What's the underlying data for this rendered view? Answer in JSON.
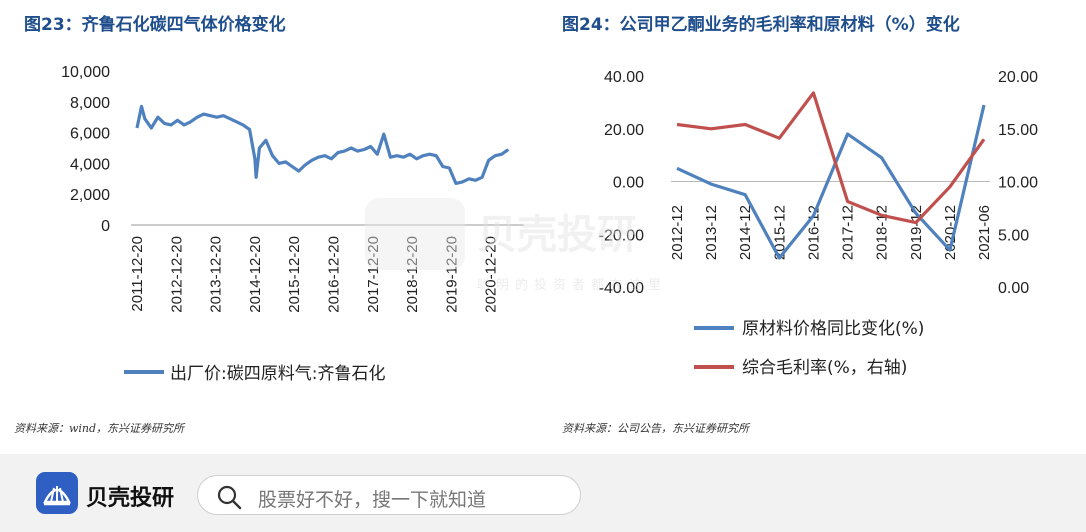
{
  "chart_data": [
    {
      "type": "line",
      "title": "图23：齐鲁石化碳四气体价格变化",
      "ylim": [
        0,
        10000
      ],
      "yticks": [
        "10,000",
        "8,000",
        "6,000",
        "4,000",
        "2,000",
        "0"
      ],
      "xticks": [
        "2011-12-20",
        "2012-12-20",
        "2013-12-20",
        "2014-12-20",
        "2015-12-20",
        "2016-12-20",
        "2017-12-20",
        "2018-12-20",
        "2019-12-20",
        "2020-12-20"
      ],
      "series": [
        {
          "name": "出厂价:碳四原料气:齐鲁石化",
          "color": "#4e81bd",
          "x": [
            "2011-12-20",
            "2012-02",
            "2012-03",
            "2012-05",
            "2012-07",
            "2012-09",
            "2012-11",
            "2013-01",
            "2013-03",
            "2013-05",
            "2013-07",
            "2013-09",
            "2013-11",
            "2014-01",
            "2014-03",
            "2014-05",
            "2014-07",
            "2014-09",
            "2014-11",
            "2014-12-20",
            "2015-01",
            "2015-02",
            "2015-04",
            "2015-06",
            "2015-08",
            "2015-10",
            "2015-12",
            "2016-02",
            "2016-04",
            "2016-06",
            "2016-08",
            "2016-10",
            "2016-12",
            "2017-02",
            "2017-04",
            "2017-06",
            "2017-08",
            "2017-10",
            "2017-12",
            "2018-02",
            "2018-04",
            "2018-06",
            "2018-08",
            "2018-10",
            "2018-12",
            "2019-02",
            "2019-04",
            "2019-06",
            "2019-08",
            "2019-10",
            "2019-12",
            "2020-02",
            "2020-04",
            "2020-06",
            "2020-08",
            "2020-10",
            "2020-12",
            "2021-02",
            "2021-04",
            "2021-06"
          ],
          "values": [
            6300,
            7700,
            6900,
            6300,
            7000,
            6600,
            6500,
            6800,
            6500,
            6700,
            7000,
            7200,
            7100,
            7000,
            7100,
            6900,
            6700,
            6500,
            6200,
            4300,
            3100,
            5000,
            5500,
            4500,
            4000,
            4100,
            3800,
            3500,
            3900,
            4200,
            4400,
            4500,
            4300,
            4700,
            4800,
            5000,
            4800,
            4900,
            5100,
            4600,
            5900,
            4400,
            4500,
            4400,
            4600,
            4300,
            4500,
            4600,
            4500,
            3800,
            3700,
            2700,
            2800,
            3000,
            2900,
            3100,
            4200,
            4500,
            4600,
            4900
          ]
        }
      ]
    },
    {
      "type": "line",
      "title": "图24：公司甲乙酮业务的毛利率和原材料（%）变化",
      "ylim": [
        -40,
        40
      ],
      "y2lim": [
        0,
        20
      ],
      "yticks": [
        "40.00",
        "20.00",
        "0.00",
        "-20.00",
        "-40.00"
      ],
      "y2ticks": [
        "20.00",
        "15.00",
        "10.00",
        "5.00",
        "0.00"
      ],
      "categories": [
        "2012-12",
        "2013-12",
        "2014-12",
        "2015-12",
        "2016-12",
        "2017-12",
        "2018-12",
        "2019-12",
        "2020-12",
        "2021-06"
      ],
      "series": [
        {
          "name": "原材料价格同比变化(%)",
          "axis": "left",
          "color": "#4e81bd",
          "values": [
            5,
            -1,
            -5,
            -29,
            -13,
            18,
            9,
            -12,
            -26,
            29
          ]
        },
        {
          "name": "综合毛利率(%，右轴)",
          "axis": "right",
          "color": "#c0504d",
          "values": [
            15.4,
            15.0,
            15.4,
            14.1,
            18.4,
            8.1,
            6.8,
            6.1,
            9.5,
            14.0
          ]
        }
      ]
    }
  ],
  "sources": {
    "left": "资料来源：wind，东兴证券研究所",
    "right": "资料来源：公司公告，东兴证券研究所"
  },
  "watermark": {
    "name": "贝壳投研",
    "slogan": "聪明的投资者都在这里"
  },
  "footer": {
    "brand": "贝壳投研",
    "search_placeholder": "股票好不好，搜一下就知道",
    "logo_icon": "shell-logo-icon",
    "search_icon": "search-icon"
  }
}
